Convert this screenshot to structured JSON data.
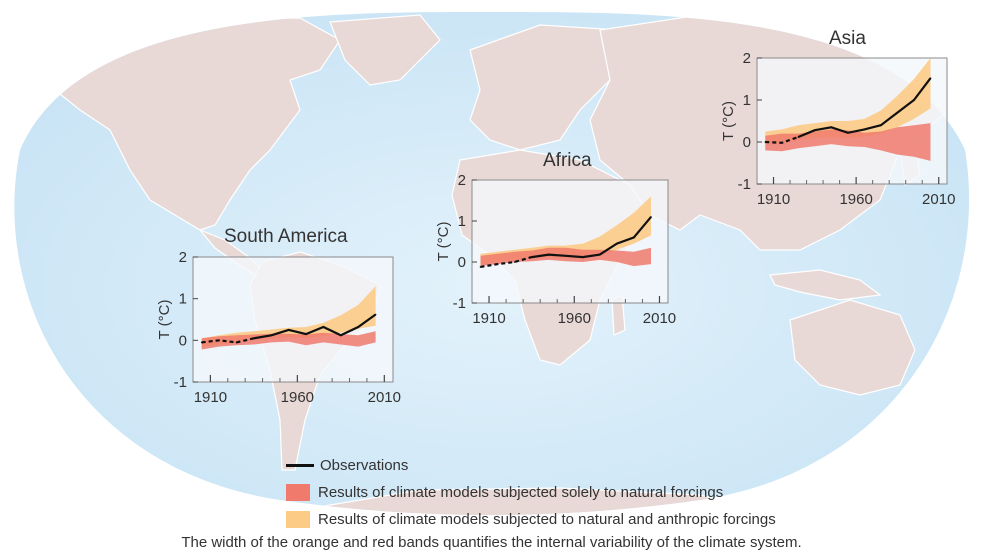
{
  "colors": {
    "ocean": "#d5ebf8",
    "land": "#e8d9d7",
    "land_border": "#ffffff",
    "panel_bg": "#f4f8fb",
    "panel_border": "#8a8a8a",
    "observations": "#111111",
    "natural_band": "#f07a6c",
    "natural_anthropic_band": "#fccb86",
    "overlap_band": "#f49a70"
  },
  "legend": {
    "observations": "Observations",
    "natural": "Results of climate models subjected solely to natural forcings",
    "natural_anthropic": "Results of climate models subjected to natural and anthropic forcings"
  },
  "caption": "The width of the orange and red bands quantifies the internal variability of the climate system.",
  "chart_data": [
    {
      "type": "line",
      "title": "South America",
      "ylabel": "T (°C)",
      "xlim": [
        1900,
        2015
      ],
      "ylim": [
        -1,
        2
      ],
      "x_ticks": [
        "1910",
        "1960",
        "2010"
      ],
      "y_ticks": [
        "-1",
        "0",
        "1",
        "2"
      ],
      "series": [
        {
          "name": "Observations",
          "style": "solid-after-dashed",
          "dashed_until": 1935,
          "x": [
            1905,
            1915,
            1925,
            1935,
            1945,
            1955,
            1965,
            1975,
            1985,
            1995,
            2005
          ],
          "y": [
            -0.05,
            0.0,
            -0.05,
            0.05,
            0.12,
            0.25,
            0.15,
            0.32,
            0.12,
            0.32,
            0.62
          ]
        },
        {
          "name": "Results of climate models subjected solely to natural forcings",
          "kind": "band",
          "x": [
            1905,
            1915,
            1925,
            1935,
            1945,
            1955,
            1965,
            1975,
            1985,
            1995,
            2005
          ],
          "lower": [
            -0.22,
            -0.15,
            -0.12,
            -0.1,
            -0.05,
            -0.03,
            -0.12,
            -0.05,
            -0.1,
            -0.15,
            -0.05
          ],
          "upper": [
            0.05,
            0.1,
            0.12,
            0.14,
            0.16,
            0.16,
            0.14,
            0.18,
            0.15,
            0.12,
            0.22
          ]
        },
        {
          "name": "Results of climate models subjected to natural and anthropic forcings",
          "kind": "band",
          "x": [
            1905,
            1915,
            1925,
            1935,
            1945,
            1955,
            1965,
            1975,
            1985,
            1995,
            2005
          ],
          "lower": [
            -0.15,
            -0.1,
            -0.05,
            0.0,
            0.05,
            0.08,
            0.05,
            0.1,
            0.18,
            0.28,
            0.35
          ],
          "upper": [
            0.05,
            0.12,
            0.18,
            0.22,
            0.26,
            0.3,
            0.32,
            0.42,
            0.6,
            0.85,
            1.3
          ]
        }
      ]
    },
    {
      "type": "line",
      "title": "Africa",
      "ylabel": "T (°C)",
      "xlim": [
        1900,
        2015
      ],
      "ylim": [
        -1,
        2
      ],
      "x_ticks": [
        "1910",
        "1960",
        "2010"
      ],
      "y_ticks": [
        "-1",
        "0",
        "1",
        "2"
      ],
      "series": [
        {
          "name": "Observations",
          "style": "solid-after-dashed",
          "dashed_until": 1935,
          "x": [
            1905,
            1915,
            1925,
            1935,
            1945,
            1955,
            1965,
            1975,
            1985,
            1995,
            2005
          ],
          "y": [
            -0.12,
            -0.05,
            0.0,
            0.12,
            0.18,
            0.15,
            0.12,
            0.18,
            0.45,
            0.6,
            1.1
          ]
        },
        {
          "name": "Results of climate models subjected solely to natural forcings",
          "kind": "band",
          "x": [
            1905,
            1915,
            1925,
            1935,
            1945,
            1955,
            1965,
            1975,
            1985,
            1995,
            2005
          ],
          "lower": [
            -0.1,
            -0.05,
            0.0,
            0.02,
            0.05,
            0.02,
            0.0,
            0.05,
            0.0,
            -0.1,
            -0.05
          ],
          "upper": [
            0.15,
            0.2,
            0.25,
            0.28,
            0.35,
            0.35,
            0.3,
            0.3,
            0.28,
            0.25,
            0.35
          ]
        },
        {
          "name": "Results of climate models subjected to natural and anthropic forcings",
          "kind": "band",
          "x": [
            1905,
            1915,
            1925,
            1935,
            1945,
            1955,
            1965,
            1975,
            1985,
            1995,
            2005
          ],
          "lower": [
            -0.05,
            0.0,
            0.05,
            0.08,
            0.12,
            0.1,
            0.12,
            0.15,
            0.3,
            0.45,
            0.65
          ],
          "upper": [
            0.2,
            0.25,
            0.3,
            0.35,
            0.4,
            0.4,
            0.45,
            0.62,
            0.9,
            1.2,
            1.6
          ]
        }
      ]
    },
    {
      "type": "line",
      "title": "Asia",
      "ylabel": "T (°C)",
      "xlim": [
        1900,
        2015
      ],
      "ylim": [
        -1,
        2
      ],
      "x_ticks": [
        "1910",
        "1960",
        "2010"
      ],
      "y_ticks": [
        "-1",
        "0",
        "1",
        "2"
      ],
      "series": [
        {
          "name": "Observations",
          "style": "solid-after-dashed",
          "dashed_until": 1925,
          "x": [
            1905,
            1915,
            1925,
            1935,
            1945,
            1955,
            1965,
            1975,
            1985,
            1995,
            2005
          ],
          "y": [
            0.0,
            -0.02,
            0.12,
            0.28,
            0.35,
            0.22,
            0.3,
            0.4,
            0.7,
            1.0,
            1.52
          ]
        },
        {
          "name": "Results of climate models subjected solely to natural forcings",
          "kind": "band",
          "x": [
            1905,
            1915,
            1925,
            1935,
            1945,
            1955,
            1965,
            1975,
            1985,
            1995,
            2005
          ],
          "lower": [
            -0.2,
            -0.22,
            -0.15,
            -0.1,
            -0.05,
            -0.1,
            -0.12,
            -0.2,
            -0.3,
            -0.35,
            -0.45
          ],
          "upper": [
            0.15,
            0.2,
            0.2,
            0.25,
            0.3,
            0.28,
            0.22,
            0.25,
            0.35,
            0.4,
            0.45
          ]
        },
        {
          "name": "Results of climate models subjected to natural and anthropic forcings",
          "kind": "band",
          "x": [
            1905,
            1915,
            1925,
            1935,
            1945,
            1955,
            1965,
            1975,
            1985,
            1995,
            2005
          ],
          "lower": [
            -0.05,
            -0.05,
            0.05,
            0.1,
            0.12,
            0.1,
            0.12,
            0.2,
            0.35,
            0.55,
            0.8
          ],
          "upper": [
            0.25,
            0.3,
            0.4,
            0.45,
            0.5,
            0.5,
            0.55,
            0.75,
            1.1,
            1.5,
            2.0
          ]
        }
      ]
    }
  ]
}
